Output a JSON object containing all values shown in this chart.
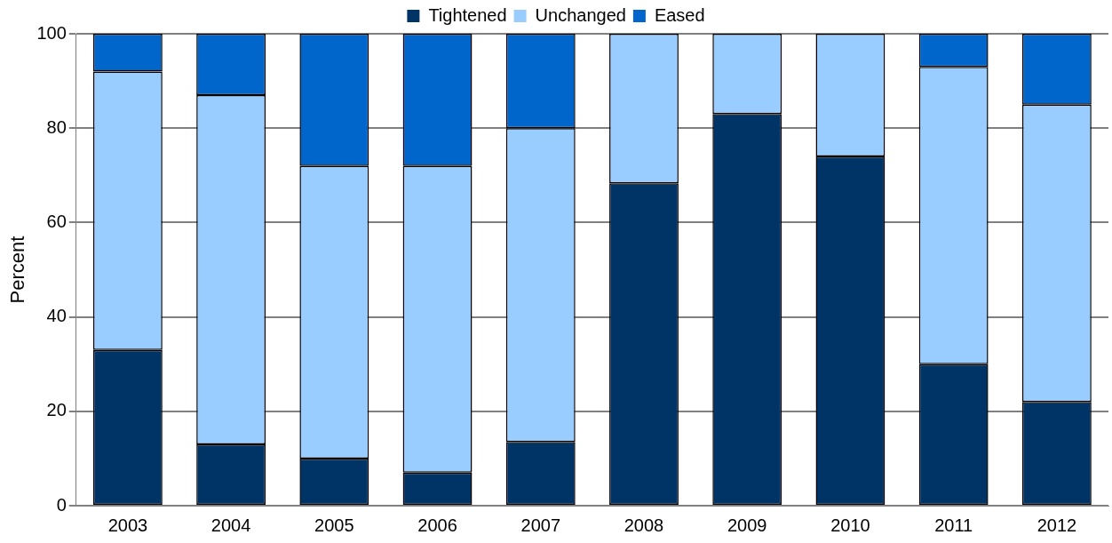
{
  "chart_data": {
    "type": "bar",
    "ylabel": "Percent",
    "stacked": true,
    "grid": "y",
    "legend": "top",
    "categories": [
      "2003",
      "2004",
      "2005",
      "2006",
      "2007",
      "2008",
      "2009",
      "2010",
      "2011",
      "2012"
    ],
    "ylim": [
      0,
      100
    ],
    "yticks": [
      0,
      20,
      40,
      60,
      80,
      100
    ],
    "series": [
      {
        "name": "Tightened",
        "color": "#003366",
        "values": [
          33,
          13,
          10,
          7,
          13.5,
          68.3,
          83,
          74,
          30,
          22
        ]
      },
      {
        "name": "Unchanged",
        "color": "#99ccff",
        "values": [
          59,
          74,
          62,
          65,
          66.5,
          31.7,
          17,
          26,
          63,
          63
        ]
      },
      {
        "name": "Eased",
        "color": "#0066cc",
        "values": [
          8,
          13,
          28,
          28,
          20,
          0,
          0,
          0,
          7,
          15
        ]
      }
    ]
  }
}
